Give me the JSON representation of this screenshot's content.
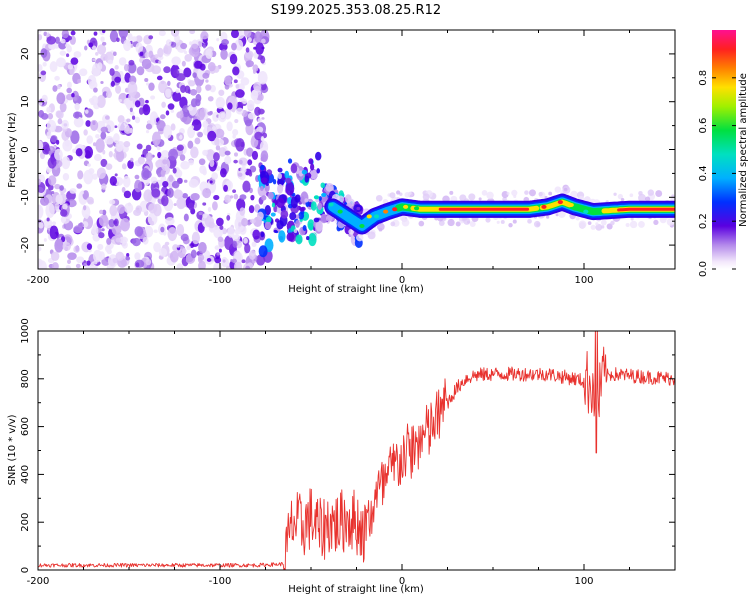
{
  "title": "S199.2025.353.08.25.R12",
  "colors": {
    "snr_line": "#e8322e",
    "spec_dominant": "#e8322e",
    "axis": "#000000"
  },
  "chart_data": [
    {
      "type": "heatmap",
      "xlabel": "Height of straight line (km)",
      "ylabel": "Frequency (Hz)",
      "xlim": [
        -200,
        150
      ],
      "ylim": [
        -25,
        25
      ],
      "xticks": [
        -200,
        -100,
        0,
        100
      ],
      "xtick_labels": [
        "-200",
        "-100",
        "0",
        "100"
      ],
      "yticks": [
        -20,
        -10,
        0,
        10,
        20
      ],
      "ytick_labels": [
        "-20",
        "-10",
        "0",
        "10",
        "20"
      ],
      "colorbar": {
        "label": "Normalized spectral amplitude",
        "range": [
          0,
          1
        ],
        "ticks": [
          0,
          0.2,
          0.4,
          0.6,
          0.8
        ],
        "tick_labels": [
          "0.0",
          "0.2",
          "0.4",
          "0.6",
          "0.8"
        ]
      },
      "description_regions": {
        "noise_x_range": [
          -200,
          -75
        ],
        "dominant_track": [
          [
            -75,
            -12
          ],
          [
            -60,
            -11
          ],
          [
            -45,
            -10
          ],
          [
            -38,
            -12
          ],
          [
            -30,
            -14
          ],
          [
            -22,
            -16
          ],
          [
            -15,
            -14
          ],
          [
            -8,
            -13
          ],
          [
            0,
            -12
          ],
          [
            10,
            -12.5
          ],
          [
            30,
            -12.5
          ],
          [
            50,
            -12.5
          ],
          [
            70,
            -12.5
          ],
          [
            80,
            -12
          ],
          [
            88,
            -11
          ],
          [
            95,
            -12
          ],
          [
            105,
            -13
          ],
          [
            125,
            -12.5
          ],
          [
            150,
            -12.5
          ]
        ]
      }
    },
    {
      "type": "line",
      "xlabel": "Height of straight line (km)",
      "ylabel": "SNR (10 * v/v)",
      "xlim": [
        -200,
        150
      ],
      "ylim": [
        0,
        1000
      ],
      "xticks": [
        -200,
        -100,
        0,
        100
      ],
      "xtick_labels": [
        "-200",
        "-100",
        "0",
        "100"
      ],
      "yticks": [
        0,
        200,
        400,
        600,
        800,
        1000
      ],
      "ytick_labels": [
        "0",
        "200",
        "400",
        "600",
        "800",
        "1000"
      ],
      "series": [
        {
          "name": "SNR",
          "x": [
            -200,
            -150,
            -100,
            -80,
            -65,
            -60,
            -55,
            -50,
            -45,
            -40,
            -35,
            -30,
            -25,
            -20,
            -15,
            -10,
            -5,
            0,
            5,
            10,
            15,
            20,
            25,
            30,
            35,
            40,
            50,
            60,
            80,
            95,
            100,
            105,
            107,
            110,
            115,
            130,
            150
          ],
          "y": [
            20,
            20,
            20,
            20,
            25,
            200,
            180,
            220,
            160,
            200,
            190,
            220,
            200,
            150,
            300,
            350,
            420,
            470,
            500,
            540,
            580,
            640,
            700,
            760,
            800,
            815,
            820,
            820,
            820,
            800,
            790,
            780,
            650,
            800,
            820,
            810,
            800
          ]
        }
      ]
    }
  ]
}
